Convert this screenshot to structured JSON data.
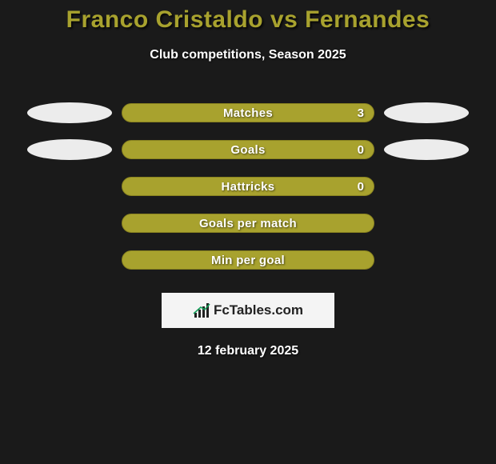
{
  "title": "Franco Cristaldo vs Fernandes",
  "subtitle": "Club competitions, Season 2025",
  "date": "12 february 2025",
  "logo_text": "FcTables.com",
  "colors": {
    "title": "#a8a22e",
    "bar_fill": "#a8a22e",
    "bar_border": "#8a8320",
    "ellipse_left": "#ececec",
    "ellipse_right": "#ececec",
    "background": "#1a1a1a"
  },
  "rows": [
    {
      "label": "Matches",
      "value": "3",
      "left_ellipse": true,
      "right_ellipse": true,
      "show_value": true
    },
    {
      "label": "Goals",
      "value": "0",
      "left_ellipse": true,
      "right_ellipse": true,
      "show_value": true
    },
    {
      "label": "Hattricks",
      "value": "0",
      "left_ellipse": false,
      "right_ellipse": false,
      "show_value": true
    },
    {
      "label": "Goals per match",
      "value": "",
      "left_ellipse": false,
      "right_ellipse": false,
      "show_value": false
    },
    {
      "label": "Min per goal",
      "value": "",
      "left_ellipse": false,
      "right_ellipse": false,
      "show_value": false
    }
  ]
}
